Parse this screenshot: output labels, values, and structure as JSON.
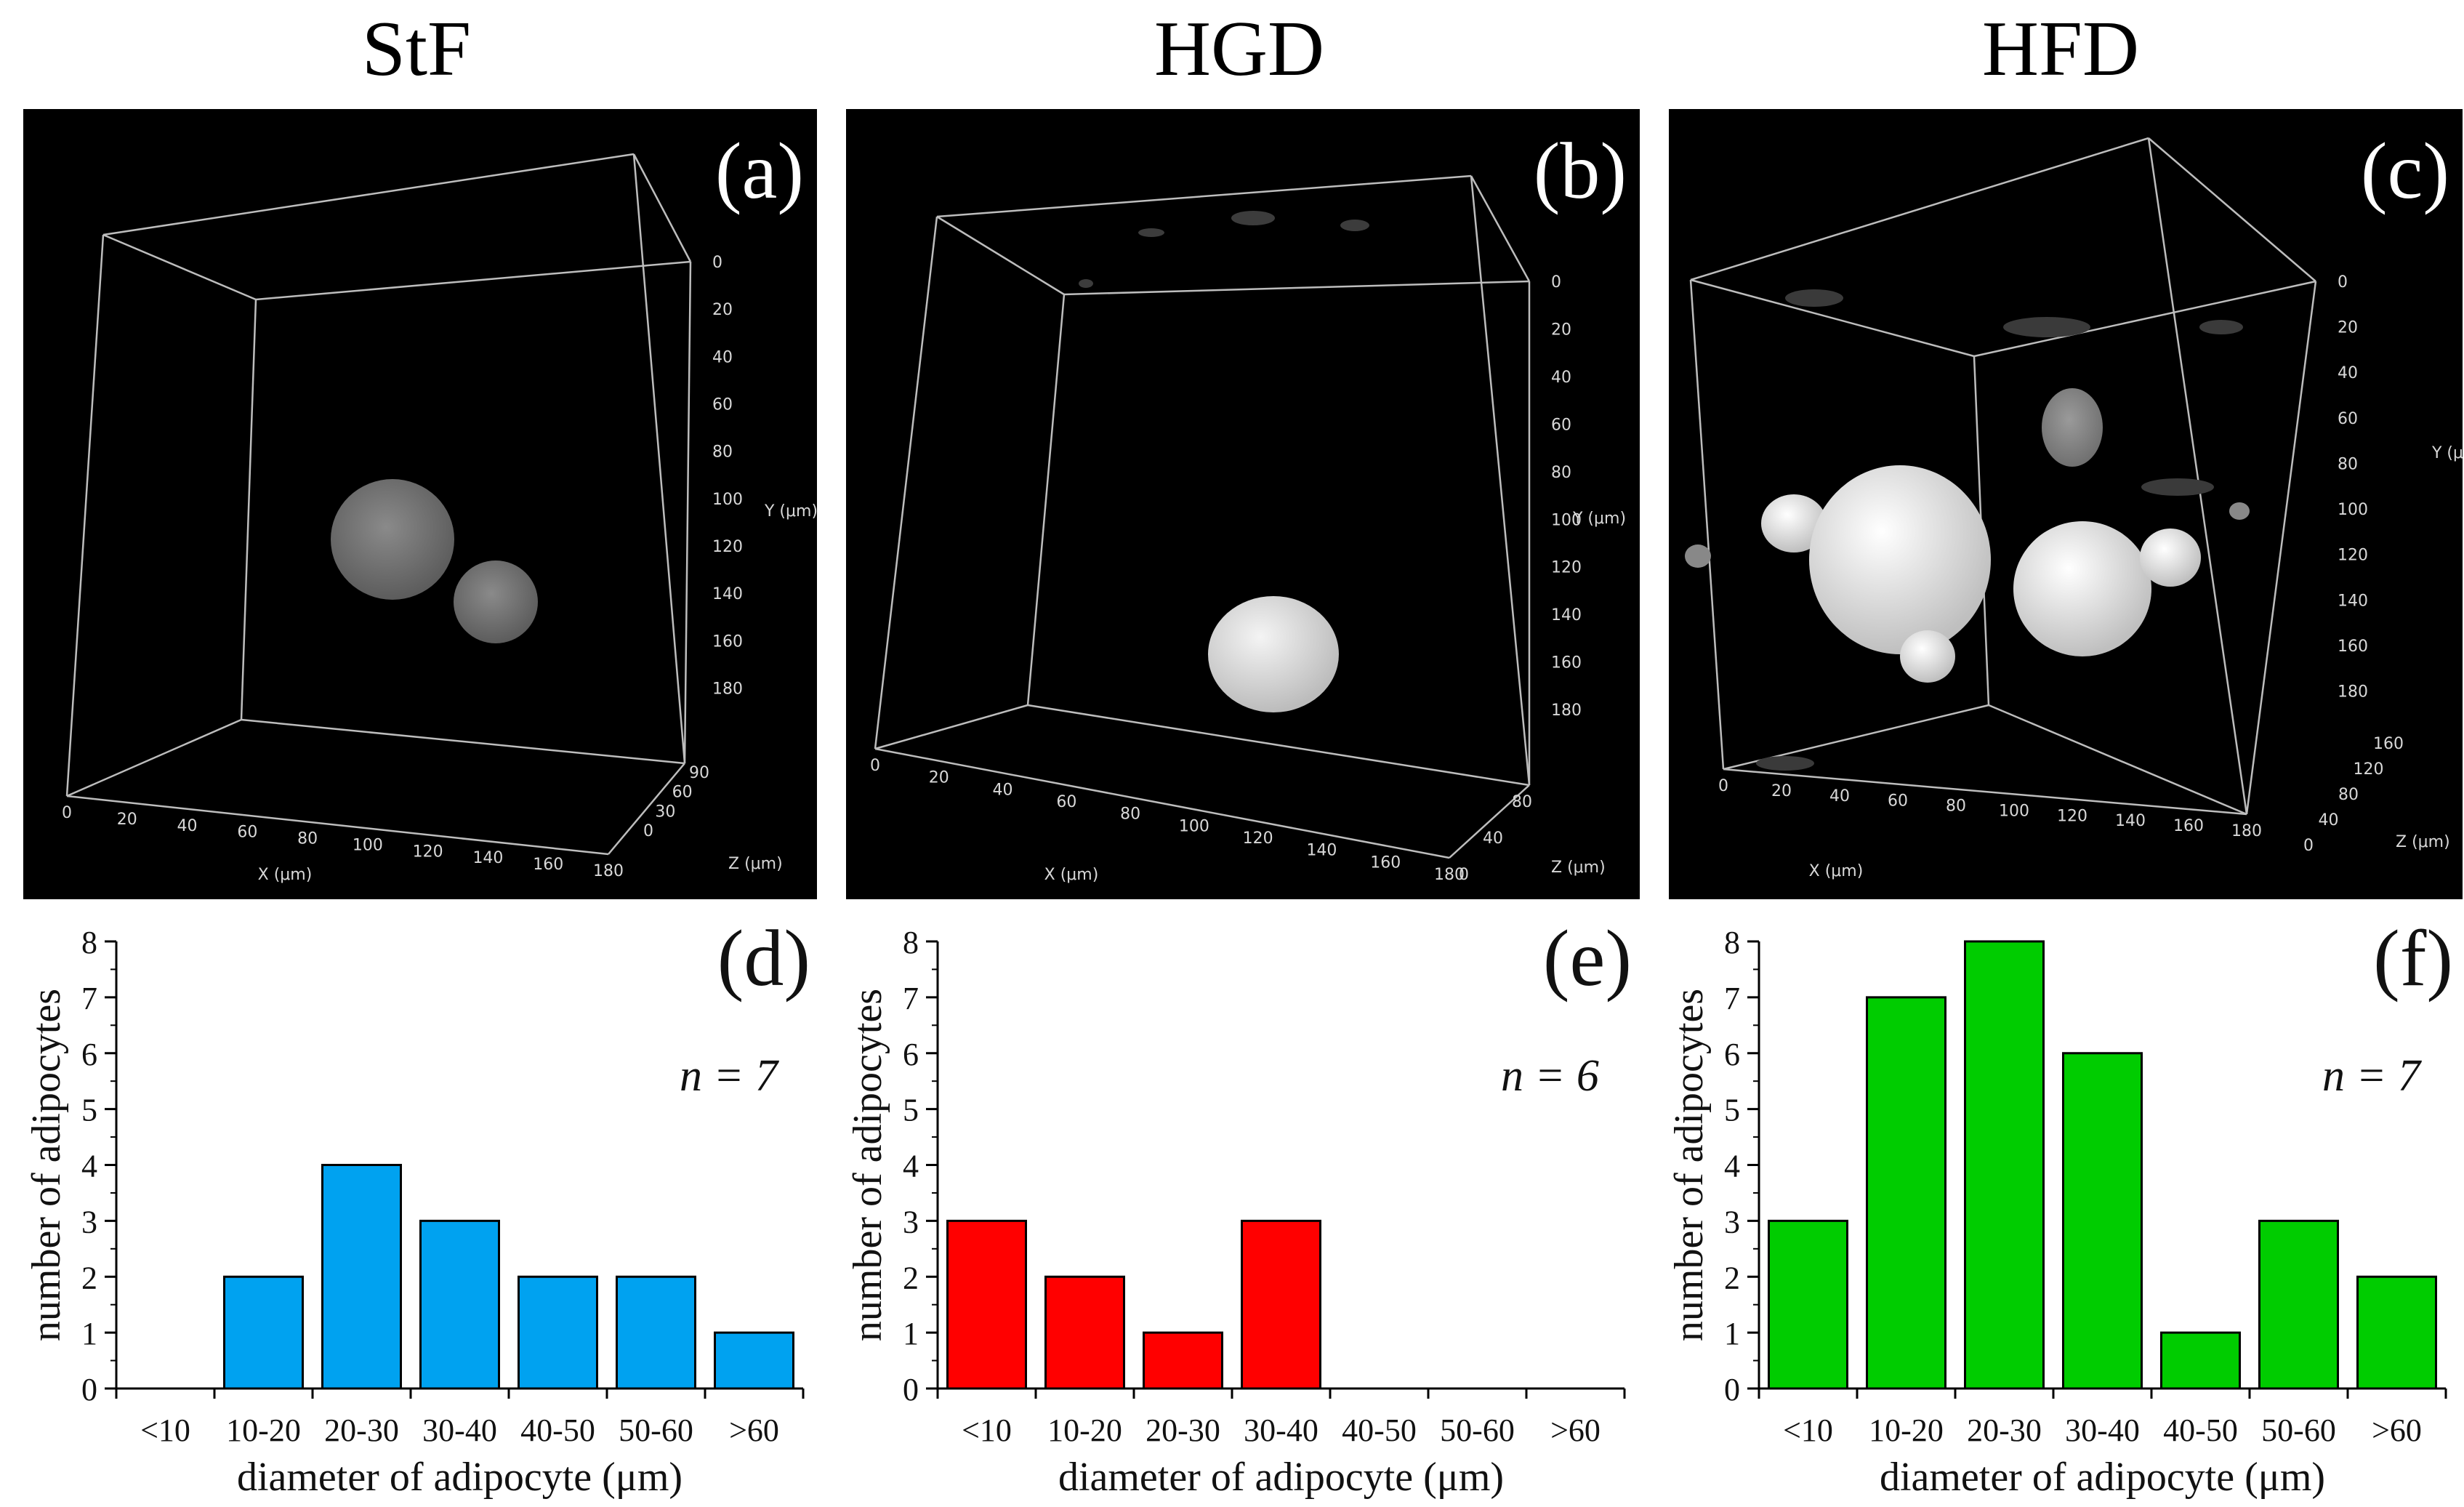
{
  "columns": [
    "StF",
    "HGD",
    "HFD"
  ],
  "panels3d": [
    {
      "label": "(a)",
      "x_axis": "X (μm)",
      "y_axis": "Y (μm)",
      "z_axis": "Z (μm)",
      "x_ticks": [
        "0",
        "20",
        "40",
        "60",
        "80",
        "100",
        "120",
        "140",
        "160",
        "180"
      ],
      "y_ticks": [
        "0",
        "20",
        "40",
        "60",
        "80",
        "100",
        "120",
        "140",
        "160",
        "180"
      ],
      "z_ticks": [
        "0",
        "30",
        "60",
        "90"
      ]
    },
    {
      "label": "(b)",
      "x_axis": "X (μm)",
      "y_axis": "Y (μm)",
      "z_axis": "Z (μm)",
      "x_ticks": [
        "0",
        "20",
        "40",
        "60",
        "80",
        "100",
        "120",
        "140",
        "160",
        "180"
      ],
      "y_ticks": [
        "0",
        "20",
        "40",
        "60",
        "80",
        "100",
        "120",
        "140",
        "160",
        "180"
      ],
      "z_ticks": [
        "0",
        "40",
        "80"
      ]
    },
    {
      "label": "(c)",
      "x_axis": "X (μm)",
      "y_axis": "Y (μm)",
      "z_axis": "Z (μm)",
      "x_ticks": [
        "0",
        "20",
        "40",
        "60",
        "80",
        "100",
        "120",
        "140",
        "160",
        "180"
      ],
      "y_ticks": [
        "0",
        "20",
        "40",
        "60",
        "80",
        "100",
        "120",
        "140",
        "160",
        "180"
      ],
      "z_ticks": [
        "0",
        "40",
        "80",
        "120",
        "160"
      ]
    }
  ],
  "chart_data": [
    {
      "type": "bar",
      "label": "(d)",
      "n_text": "n = 7",
      "color": "#00a2f0",
      "categories": [
        "<10",
        "10-20",
        "20-30",
        "30-40",
        "40-50",
        "50-60",
        ">60"
      ],
      "values": [
        0,
        2,
        4,
        3,
        2,
        2,
        1
      ],
      "xlabel": "diameter of adipocyte (μm)",
      "ylabel": "number of adipocytes",
      "ylim": [
        0,
        8
      ],
      "yticks": [
        "0",
        "1",
        "2",
        "3",
        "4",
        "5",
        "6",
        "7",
        "8"
      ]
    },
    {
      "type": "bar",
      "label": "(e)",
      "n_text": "n = 6",
      "color": "#ff0000",
      "categories": [
        "<10",
        "10-20",
        "20-30",
        "30-40",
        "40-50",
        "50-60",
        ">60"
      ],
      "values": [
        3,
        2,
        1,
        3,
        0,
        0,
        0
      ],
      "xlabel": "diameter of adipocyte (μm)",
      "ylabel": "number of adipocytes",
      "ylim": [
        0,
        8
      ],
      "yticks": [
        "0",
        "1",
        "2",
        "3",
        "4",
        "5",
        "6",
        "7",
        "8"
      ]
    },
    {
      "type": "bar",
      "label": "(f)",
      "n_text": "n = 7",
      "color": "#00cc00",
      "categories": [
        "<10",
        "10-20",
        "20-30",
        "30-40",
        "40-50",
        "50-60",
        ">60"
      ],
      "values": [
        3,
        7,
        8,
        6,
        1,
        3,
        2
      ],
      "xlabel": "diameter of adipocyte (μm)",
      "ylabel": "number of adipocytes",
      "ylim": [
        0,
        8
      ],
      "yticks": [
        "0",
        "1",
        "2",
        "3",
        "4",
        "5",
        "6",
        "7",
        "8"
      ]
    }
  ]
}
